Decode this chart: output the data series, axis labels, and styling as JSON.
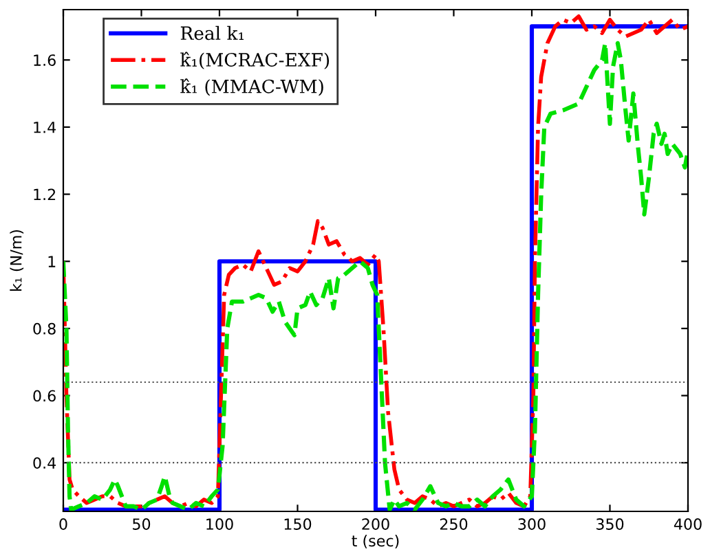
{
  "chart_data": {
    "type": "line",
    "xlabel": "t (sec)",
    "ylabel": "k₁ (N/m)",
    "xlim": [
      0,
      400
    ],
    "ylim": [
      0.255,
      1.75
    ],
    "xticks": [
      0,
      50,
      100,
      150,
      200,
      250,
      300,
      350,
      400
    ],
    "yticks": [
      0.4,
      0.6,
      0.8,
      1,
      1.2,
      1.4,
      1.6
    ],
    "legend": "top left",
    "grid": false,
    "ref_lines": [
      {
        "axis": "y",
        "value": 0.4,
        "color": "#555555",
        "line_style": "dotted"
      },
      {
        "axis": "y",
        "value": 0.64,
        "color": "#555555",
        "line_style": "dotted"
      }
    ],
    "series": [
      {
        "name": "Real k₁",
        "color": "#0000ff",
        "line_style": "solid",
        "x": [
          0,
          100,
          100,
          200,
          200,
          300,
          300,
          400
        ],
        "values": [
          0.26,
          0.26,
          1,
          1,
          0.26,
          0.26,
          1.7,
          1.7
        ]
      },
      {
        "name": "k̂₁(MCRAC-EXF)",
        "color": "#ff0000",
        "line_style": "dashdot",
        "x": [
          0,
          2,
          4,
          6,
          10,
          15,
          20,
          25,
          30,
          35,
          40,
          45,
          50,
          55,
          60,
          65,
          70,
          75,
          80,
          85,
          90,
          95,
          99,
          101,
          103,
          106,
          110,
          115,
          120,
          125,
          130,
          135,
          140,
          145,
          150,
          155,
          160,
          163,
          166,
          170,
          175,
          180,
          185,
          190,
          195,
          200,
          202,
          205,
          208,
          212,
          215,
          220,
          225,
          230,
          235,
          240,
          245,
          250,
          255,
          260,
          265,
          270,
          275,
          280,
          285,
          290,
          295,
          299,
          301,
          302,
          304,
          306,
          310,
          315,
          320,
          325,
          330,
          335,
          340,
          345,
          350,
          355,
          360,
          365,
          370,
          375,
          380,
          385,
          390,
          395,
          400
        ],
        "values": [
          1.0,
          0.6,
          0.35,
          0.32,
          0.3,
          0.28,
          0.29,
          0.3,
          0.3,
          0.28,
          0.27,
          0.27,
          0.27,
          0.28,
          0.29,
          0.3,
          0.28,
          0.27,
          0.28,
          0.27,
          0.29,
          0.28,
          0.3,
          0.6,
          0.9,
          0.96,
          0.98,
          0.99,
          0.97,
          1.03,
          0.98,
          0.93,
          0.94,
          0.98,
          0.97,
          1.0,
          1.05,
          1.12,
          1.1,
          1.05,
          1.06,
          1.02,
          1.0,
          1.01,
          0.99,
          1.02,
          1.0,
          0.8,
          0.55,
          0.38,
          0.32,
          0.29,
          0.28,
          0.3,
          0.29,
          0.27,
          0.28,
          0.27,
          0.28,
          0.29,
          0.27,
          0.28,
          0.3,
          0.29,
          0.31,
          0.28,
          0.27,
          0.3,
          0.6,
          1.0,
          1.4,
          1.55,
          1.65,
          1.7,
          1.72,
          1.71,
          1.73,
          1.69,
          1.7,
          1.68,
          1.72,
          1.69,
          1.67,
          1.68,
          1.69,
          1.72,
          1.68,
          1.7,
          1.72,
          1.69,
          1.7
        ]
      },
      {
        "name": "k̂₁ (MMAC-WM)",
        "color": "#00e000",
        "line_style": "dashed",
        "x": [
          0,
          2,
          3,
          4,
          5,
          10,
          15,
          20,
          25,
          30,
          33,
          35,
          40,
          45,
          50,
          55,
          60,
          63,
          65,
          68,
          70,
          75,
          80,
          85,
          90,
          95,
          99,
          102,
          105,
          108,
          115,
          120,
          125,
          130,
          134,
          138,
          142,
          145,
          148,
          150,
          155,
          158,
          162,
          166,
          170,
          173,
          176,
          180,
          185,
          190,
          195,
          198,
          201,
          203,
          206,
          209,
          212,
          215,
          220,
          225,
          230,
          235,
          240,
          245,
          250,
          255,
          260,
          265,
          270,
          275,
          280,
          285,
          290,
          295,
          300,
          302,
          304,
          306,
          308,
          312,
          320,
          330,
          335,
          340,
          345,
          347,
          350,
          352,
          355,
          357,
          360,
          362,
          365,
          368,
          370,
          372,
          375,
          378,
          380,
          383,
          385,
          387,
          390,
          395,
          398,
          400
        ],
        "values": [
          1.0,
          0.8,
          0.5,
          0.3,
          0.26,
          0.27,
          0.28,
          0.3,
          0.29,
          0.32,
          0.35,
          0.33,
          0.27,
          0.27,
          0.26,
          0.28,
          0.29,
          0.33,
          0.36,
          0.3,
          0.28,
          0.27,
          0.26,
          0.28,
          0.27,
          0.3,
          0.32,
          0.45,
          0.8,
          0.88,
          0.88,
          0.89,
          0.9,
          0.89,
          0.85,
          0.88,
          0.82,
          0.8,
          0.78,
          0.86,
          0.87,
          0.91,
          0.87,
          0.89,
          0.95,
          0.86,
          0.95,
          0.96,
          0.98,
          1.0,
          0.98,
          0.93,
          0.9,
          0.7,
          0.4,
          0.26,
          0.29,
          0.27,
          0.28,
          0.26,
          0.29,
          0.33,
          0.28,
          0.27,
          0.28,
          0.27,
          0.27,
          0.29,
          0.27,
          0.3,
          0.32,
          0.35,
          0.29,
          0.27,
          0.3,
          0.5,
          0.9,
          1.2,
          1.4,
          1.44,
          1.45,
          1.47,
          1.52,
          1.57,
          1.6,
          1.65,
          1.41,
          1.58,
          1.65,
          1.6,
          1.45,
          1.36,
          1.5,
          1.34,
          1.25,
          1.14,
          1.25,
          1.38,
          1.41,
          1.35,
          1.38,
          1.32,
          1.35,
          1.32,
          1.28,
          1.33
        ]
      }
    ]
  }
}
